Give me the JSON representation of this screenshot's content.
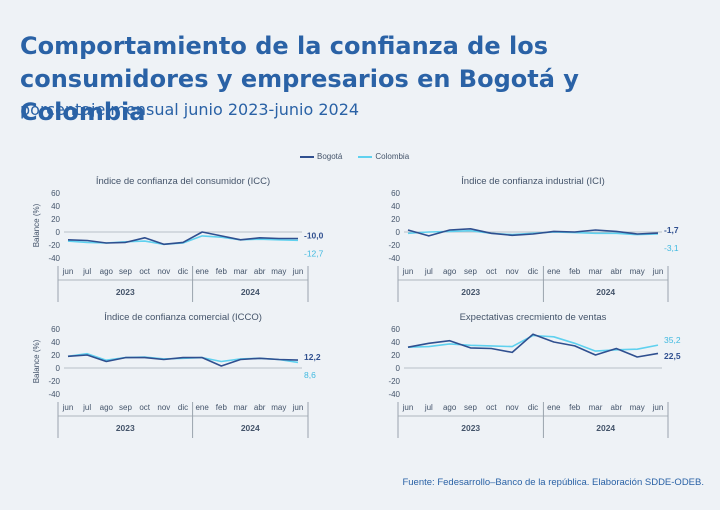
{
  "title": "Comportamiento de la confianza de los consumidores y empresarios en Bogotá y Colombia",
  "subtitle": "porcentaje mensual junio 2023-junio 2024",
  "source": "Fuente: Fedesarrollo–Banco de la república. Elaboración SDDE-ODEB.",
  "colors": {
    "bogota": "#2f4f8f",
    "colombia": "#5fd1ef",
    "title": "#2a62a6",
    "axis": "#6b7280",
    "grid": "#b8c0c8"
  },
  "legend": [
    {
      "name": "Bogotá",
      "color": "#2f4f8f"
    },
    {
      "name": "Colombia",
      "color": "#5fd1ef"
    }
  ],
  "chart_data": [
    {
      "type": "line",
      "title": "Índice de confianza del consumidor (ICC)",
      "ylabel": "Balance (%)",
      "ylim": [
        -40,
        60
      ],
      "yticks": [
        60,
        40,
        20,
        0,
        -20,
        -40
      ],
      "categories": [
        "jun",
        "jul",
        "ago",
        "sep",
        "oct",
        "nov",
        "dic",
        "ene",
        "feb",
        "mar",
        "abr",
        "may",
        "jun"
      ],
      "years": [
        "2023",
        "2024"
      ],
      "series": [
        {
          "name": "Bogotá",
          "values": [
            -12,
            -13,
            -17,
            -16,
            -9,
            -19,
            -16,
            0,
            -6,
            -12,
            -9,
            -10,
            -10.0
          ]
        },
        {
          "name": "Colombia",
          "values": [
            -14,
            -16,
            -17,
            -15,
            -14,
            -19,
            -17,
            -6,
            -8,
            -12,
            -11,
            -12,
            -12.7
          ]
        }
      ],
      "end_labels": [
        "-10,0",
        "-12,7"
      ]
    },
    {
      "type": "line",
      "title": "Índice de confianza industrial (ICI)",
      "ylabel": "",
      "ylim": [
        -40,
        60
      ],
      "yticks": [
        60,
        40,
        20,
        0,
        -20,
        -40
      ],
      "categories": [
        "jun",
        "jul",
        "ago",
        "sep",
        "oct",
        "nov",
        "dic",
        "ene",
        "feb",
        "mar",
        "abr",
        "may",
        "jun"
      ],
      "years": [
        "2023",
        "2024"
      ],
      "series": [
        {
          "name": "Bogotá",
          "values": [
            3,
            -6,
            3,
            5,
            -2,
            -5,
            -3,
            1,
            0,
            3,
            1,
            -3,
            -1.7
          ]
        },
        {
          "name": "Colombia",
          "values": [
            -2,
            0,
            1,
            2,
            -2,
            -4,
            -2,
            0,
            -1,
            -2,
            -2,
            -4,
            -3.1
          ]
        }
      ],
      "end_labels": [
        "-1,7",
        "-3,1"
      ]
    },
    {
      "type": "line",
      "title": "Índice de confianza comercial (ICCO)",
      "ylabel": "Balance (%)",
      "ylim": [
        -40,
        60
      ],
      "yticks": [
        60,
        40,
        20,
        0,
        -20,
        -40
      ],
      "categories": [
        "jun",
        "jul",
        "ago",
        "sep",
        "oct",
        "nov",
        "dic",
        "ene",
        "feb",
        "mar",
        "abr",
        "may",
        "jun"
      ],
      "years": [
        "2023",
        "2024"
      ],
      "series": [
        {
          "name": "Bogotá",
          "values": [
            18,
            20,
            10,
            16,
            16,
            13,
            16,
            16,
            3,
            13,
            15,
            13,
            12.2
          ]
        },
        {
          "name": "Colombia",
          "values": [
            18,
            22,
            12,
            16,
            17,
            14,
            15,
            16,
            10,
            14,
            15,
            13,
            8.6
          ]
        }
      ],
      "end_labels": [
        "12,2",
        "8,6"
      ]
    },
    {
      "type": "line",
      "title": "Expectativas crecmiento de ventas",
      "ylabel": "",
      "ylim": [
        -40,
        60
      ],
      "yticks": [
        60,
        40,
        20,
        0,
        -20,
        -40
      ],
      "categories": [
        "jun",
        "jul",
        "ago",
        "sep",
        "oct",
        "nov",
        "dic",
        "ene",
        "feb",
        "mar",
        "abr",
        "may",
        "jun"
      ],
      "years": [
        "2023",
        "2024"
      ],
      "series": [
        {
          "name": "Bogotá",
          "values": [
            32,
            38,
            42,
            31,
            30,
            24,
            52,
            40,
            34,
            20,
            30,
            17,
            22.5
          ]
        },
        {
          "name": "Colombia",
          "values": [
            32,
            33,
            37,
            35,
            34,
            33,
            50,
            48,
            38,
            26,
            28,
            29,
            35.2
          ]
        }
      ],
      "end_labels": [
        "22,5",
        "35,2"
      ]
    }
  ]
}
